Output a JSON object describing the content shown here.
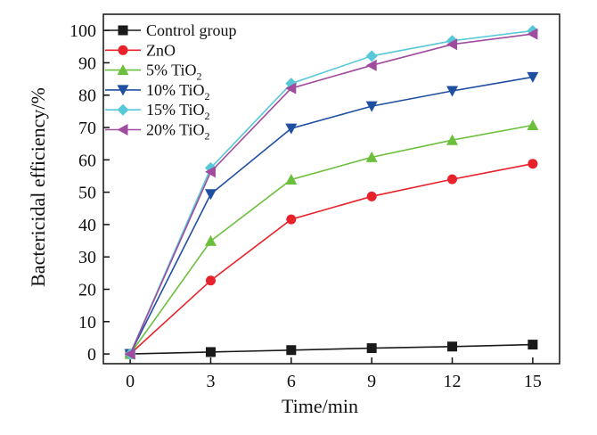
{
  "chart_data": {
    "type": "line",
    "title": "",
    "xlabel": "Time/min",
    "ylabel": "Bactericidal efficiency/%",
    "x": [
      0,
      3,
      6,
      9,
      12,
      15
    ],
    "xlim": [
      -1,
      16
    ],
    "ylim": [
      -3,
      105
    ],
    "xticks": [
      0,
      3,
      6,
      9,
      12,
      15
    ],
    "yticks": [
      0,
      10,
      20,
      30,
      40,
      50,
      60,
      70,
      80,
      90,
      100
    ],
    "grid": false,
    "legend_position": "top-left",
    "series": [
      {
        "name": "Control group",
        "legend_main": "Control group",
        "legend_sub": "",
        "color": "#1a1a1a",
        "marker": "square",
        "values": [
          0,
          0.6,
          1.2,
          1.8,
          2.3,
          2.9
        ]
      },
      {
        "name": "ZnO",
        "legend_main": "ZnO",
        "legend_sub": "",
        "color": "#e8222a",
        "marker": "circle",
        "values": [
          0,
          22.7,
          41.6,
          48.7,
          54.0,
          58.8
        ]
      },
      {
        "name": "5% TiO2",
        "legend_main": "5% TiO",
        "legend_sub": "2",
        "color": "#6cbf3c",
        "marker": "triangle-up",
        "values": [
          0,
          34.9,
          53.9,
          60.8,
          66.1,
          70.7
        ]
      },
      {
        "name": "10% TiO2",
        "legend_main": "10% TiO",
        "legend_sub": "2",
        "color": "#1f4fa0",
        "marker": "triangle-down",
        "values": [
          0,
          49.4,
          69.7,
          76.6,
          81.3,
          85.6
        ]
      },
      {
        "name": "15% TiO2",
        "legend_main": "15% TiO",
        "legend_sub": "2",
        "color": "#57c8d8",
        "marker": "diamond",
        "values": [
          0,
          57.5,
          83.6,
          92.1,
          96.8,
          99.9
        ]
      },
      {
        "name": "20% TiO2",
        "legend_main": "20% TiO",
        "legend_sub": "2",
        "color": "#a04c9e",
        "marker": "triangle-left",
        "values": [
          0,
          56.3,
          82.1,
          89.2,
          95.7,
          98.9
        ]
      }
    ]
  }
}
